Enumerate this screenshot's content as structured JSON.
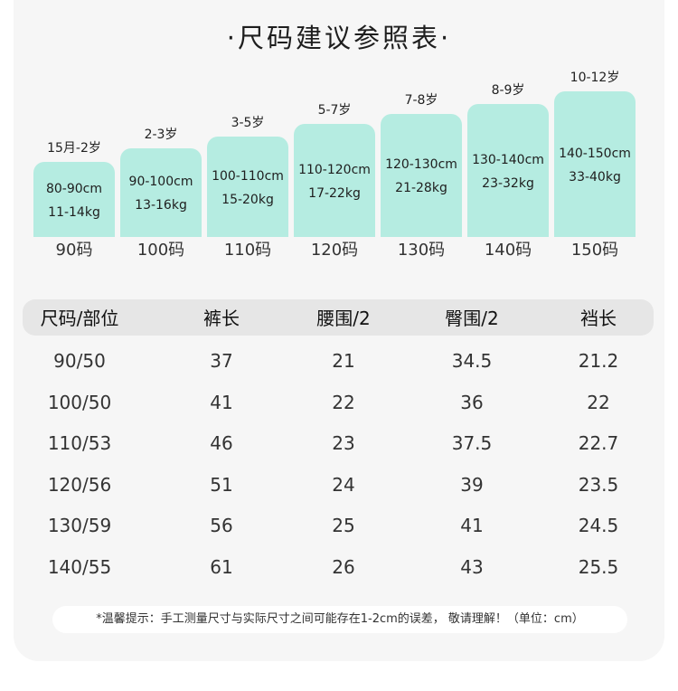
{
  "title": "·尺码建议参照表·",
  "sizes": [
    {
      "age": "15月-2岁",
      "height": "80-90cm",
      "weight": "11-14kg",
      "code": "90码"
    },
    {
      "age": "2-3岁",
      "height": "90-100cm",
      "weight": "13-16kg",
      "code": "100码"
    },
    {
      "age": "3-5岁",
      "height": "100-110cm",
      "weight": "15-20kg",
      "code": "110码"
    },
    {
      "age": "5-7岁",
      "height": "110-120cm",
      "weight": "17-22kg",
      "code": "120码"
    },
    {
      "age": "7-8岁",
      "height": "120-130cm",
      "weight": "21-28kg",
      "code": "130码"
    },
    {
      "age": "8-9岁",
      "height": "130-140cm",
      "weight": "23-32kg",
      "code": "140码"
    },
    {
      "age": "10-12岁",
      "height": "140-150cm",
      "weight": "33-40kg",
      "code": "150码"
    }
  ],
  "table": {
    "headers": [
      "尺码/部位",
      "裤长",
      "腰围/2",
      "臀围/2",
      "裆长"
    ],
    "rows": [
      [
        "90/50",
        "37",
        "21",
        "34.5",
        "21.2"
      ],
      [
        "100/50",
        "41",
        "22",
        "36",
        "22"
      ],
      [
        "110/53",
        "46",
        "23",
        "37.5",
        "22.7"
      ],
      [
        "120/56",
        "51",
        "24",
        "39",
        "23.5"
      ],
      [
        "130/59",
        "56",
        "25",
        "41",
        "24.5"
      ],
      [
        "140/55",
        "61",
        "26",
        "43",
        "25.5"
      ]
    ]
  },
  "note": "*温馨提示：手工测量尺寸与实际尺寸之间可能存在1-2cm的误差，  敬请理解！（单位：cm）",
  "colors": {
    "bar": "#b5ece1",
    "header_bg": "#e6e6e6",
    "card_bg": "#f6f6f6"
  }
}
